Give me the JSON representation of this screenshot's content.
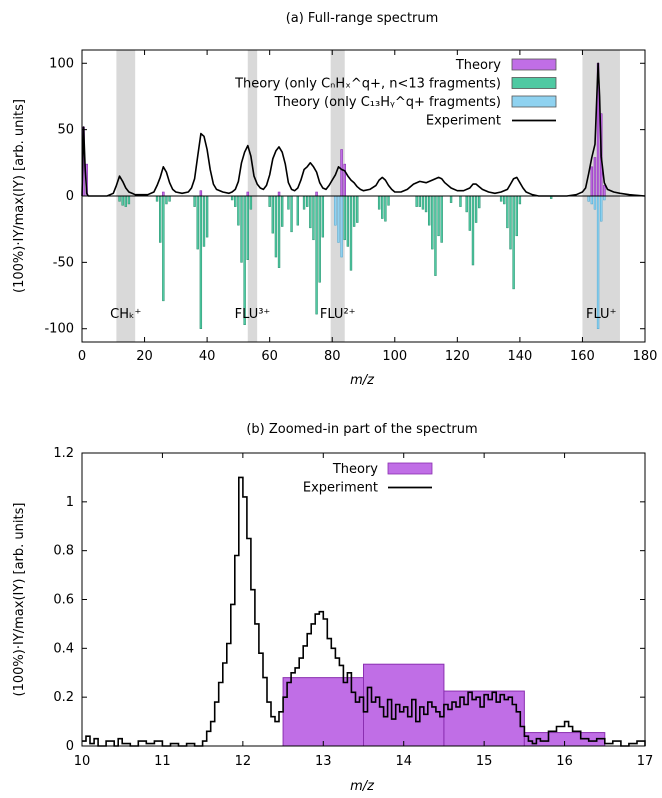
{
  "chart_data": [
    {
      "type": "bar",
      "title": "(a) Full-range spectrum",
      "xlabel": "m/z",
      "ylabel": "(100%)·IY/max(IY) [arb. units]",
      "xlim": [
        0,
        180
      ],
      "ylim": [
        -110,
        110
      ],
      "xticks": [
        "0",
        "20",
        "40",
        "60",
        "80",
        "100",
        "120",
        "140",
        "160",
        "180"
      ],
      "yticks": [
        "-100",
        "-50",
        "0",
        "50",
        "100"
      ],
      "legend_position": "top-right",
      "legend": [
        {
          "key": "theory",
          "label": "Theory",
          "color": "#c06ee6",
          "kind": "box"
        },
        {
          "key": "theory_cn",
          "label": "Theory (only CₙHₓ^q+, n<13 fragments)",
          "color": "#4fc9a2",
          "kind": "box"
        },
        {
          "key": "theory_c13",
          "label": "Theory (only C₁₃Hᵧ^q+ fragments)",
          "color": "#8fd2f0",
          "kind": "box"
        },
        {
          "key": "experiment",
          "label": "Experiment",
          "color": "#000000",
          "kind": "line"
        }
      ],
      "shaded_regions": [
        {
          "x0": 11,
          "x1": 17,
          "label": "CHₖ⁺"
        },
        {
          "x0": 53,
          "x1": 56,
          "label": "FLU³⁺"
        },
        {
          "x0": 79.5,
          "x1": 84,
          "label": "FLU²⁺"
        },
        {
          "x0": 160,
          "x1": 172,
          "label": "FLU⁺"
        }
      ],
      "experiment": [
        [
          0,
          0
        ],
        [
          0.5,
          52
        ],
        [
          1,
          22
        ],
        [
          1.5,
          2
        ],
        [
          2,
          0
        ],
        [
          8,
          0
        ],
        [
          10,
          2
        ],
        [
          11,
          8
        ],
        [
          12,
          15
        ],
        [
          13,
          11
        ],
        [
          14,
          6
        ],
        [
          15,
          3
        ],
        [
          16,
          2
        ],
        [
          17,
          1
        ],
        [
          19,
          1
        ],
        [
          21,
          1
        ],
        [
          23,
          3
        ],
        [
          24,
          8
        ],
        [
          25,
          14
        ],
        [
          26,
          22
        ],
        [
          27,
          18
        ],
        [
          28,
          10
        ],
        [
          29,
          5
        ],
        [
          30,
          3
        ],
        [
          32,
          2
        ],
        [
          34,
          3
        ],
        [
          35,
          6
        ],
        [
          36,
          13
        ],
        [
          37,
          30
        ],
        [
          38,
          47
        ],
        [
          39,
          45
        ],
        [
          40,
          35
        ],
        [
          41,
          20
        ],
        [
          42,
          9
        ],
        [
          43,
          5
        ],
        [
          45,
          3
        ],
        [
          47,
          2
        ],
        [
          48,
          3
        ],
        [
          49,
          5
        ],
        [
          50,
          11
        ],
        [
          51,
          25
        ],
        [
          52,
          33
        ],
        [
          53,
          38
        ],
        [
          54,
          30
        ],
        [
          55,
          15
        ],
        [
          56,
          9
        ],
        [
          57,
          6
        ],
        [
          58,
          5
        ],
        [
          59,
          8
        ],
        [
          60,
          16
        ],
        [
          61,
          28
        ],
        [
          62,
          34
        ],
        [
          63,
          37
        ],
        [
          64,
          33
        ],
        [
          65,
          24
        ],
        [
          66,
          10
        ],
        [
          67,
          5
        ],
        [
          68,
          4
        ],
        [
          69,
          6
        ],
        [
          70,
          12
        ],
        [
          71,
          20
        ],
        [
          72,
          22
        ],
        [
          73,
          25
        ],
        [
          74,
          22
        ],
        [
          75,
          18
        ],
        [
          76,
          10
        ],
        [
          77,
          6
        ],
        [
          78,
          5
        ],
        [
          79,
          8
        ],
        [
          80,
          12
        ],
        [
          81,
          16
        ],
        [
          82,
          22
        ],
        [
          83,
          20
        ],
        [
          84,
          19
        ],
        [
          85,
          15
        ],
        [
          86,
          12
        ],
        [
          87,
          10
        ],
        [
          88,
          7
        ],
        [
          89,
          5
        ],
        [
          90,
          4
        ],
        [
          92,
          5
        ],
        [
          94,
          8
        ],
        [
          95,
          12
        ],
        [
          96,
          14
        ],
        [
          97,
          12
        ],
        [
          98,
          8
        ],
        [
          99,
          5
        ],
        [
          100,
          3
        ],
        [
          102,
          3
        ],
        [
          104,
          5
        ],
        [
          106,
          9
        ],
        [
          108,
          11
        ],
        [
          110,
          10
        ],
        [
          112,
          12
        ],
        [
          114,
          14
        ],
        [
          115,
          13
        ],
        [
          116,
          10
        ],
        [
          118,
          6
        ],
        [
          120,
          4
        ],
        [
          122,
          4
        ],
        [
          124,
          6
        ],
        [
          125,
          9
        ],
        [
          126,
          9
        ],
        [
          127,
          7
        ],
        [
          128,
          5
        ],
        [
          130,
          3
        ],
        [
          132,
          2
        ],
        [
          134,
          3
        ],
        [
          136,
          5
        ],
        [
          137,
          9
        ],
        [
          138,
          13
        ],
        [
          139,
          14
        ],
        [
          140,
          10
        ],
        [
          141,
          6
        ],
        [
          142,
          3
        ],
        [
          144,
          1
        ],
        [
          146,
          0
        ],
        [
          155,
          0
        ],
        [
          158,
          1
        ],
        [
          160,
          3
        ],
        [
          161,
          6
        ],
        [
          162,
          17
        ],
        [
          163,
          29
        ],
        [
          164,
          39
        ],
        [
          165,
          100
        ],
        [
          165.5,
          75
        ],
        [
          166,
          30
        ],
        [
          167,
          10
        ],
        [
          168,
          5
        ],
        [
          170,
          3
        ],
        [
          172,
          2
        ],
        [
          175,
          1
        ],
        [
          180,
          0
        ]
      ],
      "theory_pos": [
        [
          0.5,
          52
        ],
        [
          1.5,
          24
        ],
        [
          26,
          3
        ],
        [
          38,
          4
        ],
        [
          53,
          3
        ],
        [
          63,
          3
        ],
        [
          75,
          3
        ],
        [
          83,
          35
        ],
        [
          84,
          24
        ],
        [
          163,
          22
        ],
        [
          164,
          29
        ],
        [
          165,
          100
        ],
        [
          166,
          62
        ],
        [
          167,
          8
        ]
      ],
      "theory_cn": [
        [
          12,
          -4
        ],
        [
          13,
          -7
        ],
        [
          14,
          -8
        ],
        [
          15,
          -6
        ],
        [
          24,
          -4
        ],
        [
          25,
          -35
        ],
        [
          26,
          -79
        ],
        [
          27,
          -6
        ],
        [
          28,
          -4
        ],
        [
          36,
          -8
        ],
        [
          37,
          -40
        ],
        [
          38,
          -100
        ],
        [
          39,
          -38
        ],
        [
          40,
          -31
        ],
        [
          48,
          -3
        ],
        [
          49,
          -8
        ],
        [
          50,
          -22
        ],
        [
          51,
          -50
        ],
        [
          52,
          -97
        ],
        [
          53,
          -48
        ],
        [
          54,
          -10
        ],
        [
          60,
          -8
        ],
        [
          61,
          -28
        ],
        [
          62,
          -46
        ],
        [
          63,
          -54
        ],
        [
          64,
          -23
        ],
        [
          66,
          -10
        ],
        [
          67,
          -27
        ],
        [
          69,
          -22
        ],
        [
          71,
          -10
        ],
        [
          72,
          -8
        ],
        [
          73,
          -24
        ],
        [
          74,
          -33
        ],
        [
          75,
          -89
        ],
        [
          76,
          -65
        ],
        [
          77,
          -31
        ],
        [
          84,
          -33
        ],
        [
          85,
          -38
        ],
        [
          86,
          -56
        ],
        [
          87,
          -23
        ],
        [
          88,
          -20
        ],
        [
          95,
          -10
        ],
        [
          96,
          -17
        ],
        [
          97,
          -19
        ],
        [
          98,
          -7
        ],
        [
          107,
          -8
        ],
        [
          108,
          -8
        ],
        [
          109,
          -10
        ],
        [
          110,
          -12
        ],
        [
          111,
          -22
        ],
        [
          112,
          -40
        ],
        [
          113,
          -60
        ],
        [
          114,
          -30
        ],
        [
          115,
          -35
        ],
        [
          118,
          -5
        ],
        [
          121,
          -8
        ],
        [
          123,
          -12
        ],
        [
          124,
          -26
        ],
        [
          125,
          -52
        ],
        [
          126,
          -20
        ],
        [
          127,
          -9
        ],
        [
          134,
          -4
        ],
        [
          135,
          -6
        ],
        [
          136,
          -24
        ],
        [
          137,
          -40
        ],
        [
          138,
          -70
        ],
        [
          139,
          -30
        ],
        [
          140,
          -6
        ],
        [
          150,
          -2
        ]
      ],
      "theory_c13": [
        [
          81,
          -22
        ],
        [
          82,
          -35
        ],
        [
          83,
          -46
        ],
        [
          162,
          -4
        ],
        [
          163,
          -6
        ],
        [
          164,
          -10
        ],
        [
          165,
          -100
        ],
        [
          166,
          -19
        ],
        [
          167,
          -3
        ]
      ]
    },
    {
      "type": "bar",
      "title": "(b) Zoomed-in part of the spectrum",
      "xlabel": "m/z",
      "ylabel": "(100%)·IY/max(IY) [arb. units]",
      "xlim": [
        10,
        17
      ],
      "ylim": [
        0,
        1.2
      ],
      "xticks": [
        "10",
        "11",
        "12",
        "13",
        "14",
        "15",
        "16",
        "17"
      ],
      "yticks": [
        "0",
        "0.2",
        "0.4",
        "0.6",
        "0.8",
        "1",
        "1.2"
      ],
      "legend_position": "top-center",
      "legend": [
        {
          "key": "theory",
          "label": "Theory",
          "color": "#c06ee6",
          "kind": "box"
        },
        {
          "key": "experiment",
          "label": "Experiment",
          "color": "#000000",
          "kind": "line"
        }
      ],
      "theory_bars": [
        {
          "x0": 12.5,
          "x1": 13.5,
          "value": 0.28
        },
        {
          "x0": 13.5,
          "x1": 14.5,
          "value": 0.335
        },
        {
          "x0": 14.5,
          "x1": 15.5,
          "value": 0.225
        },
        {
          "x0": 15.5,
          "x1": 16.5,
          "value": 0.055
        }
      ],
      "experiment": [
        [
          10,
          0.02
        ],
        [
          10.05,
          0.04
        ],
        [
          10.1,
          0.01
        ],
        [
          10.15,
          0.03
        ],
        [
          10.2,
          0.0
        ],
        [
          10.3,
          0.02
        ],
        [
          10.4,
          0.0
        ],
        [
          10.45,
          0.03
        ],
        [
          10.5,
          0.01
        ],
        [
          10.6,
          0.0
        ],
        [
          10.7,
          0.02
        ],
        [
          10.8,
          0.01
        ],
        [
          10.9,
          0.02
        ],
        [
          11.0,
          0.0
        ],
        [
          11.1,
          0.01
        ],
        [
          11.2,
          0.0
        ],
        [
          11.3,
          0.01
        ],
        [
          11.4,
          0.0
        ],
        [
          11.5,
          0.02
        ],
        [
          11.55,
          0.06
        ],
        [
          11.6,
          0.1
        ],
        [
          11.65,
          0.18
        ],
        [
          11.7,
          0.26
        ],
        [
          11.75,
          0.34
        ],
        [
          11.8,
          0.42
        ],
        [
          11.85,
          0.58
        ],
        [
          11.9,
          0.78
        ],
        [
          11.95,
          1.1
        ],
        [
          12.0,
          1.02
        ],
        [
          12.05,
          0.85
        ],
        [
          12.1,
          0.64
        ],
        [
          12.15,
          0.5
        ],
        [
          12.2,
          0.38
        ],
        [
          12.25,
          0.28
        ],
        [
          12.3,
          0.18
        ],
        [
          12.35,
          0.12
        ],
        [
          12.4,
          0.1
        ],
        [
          12.45,
          0.14
        ],
        [
          12.5,
          0.2
        ],
        [
          12.55,
          0.26
        ],
        [
          12.6,
          0.3
        ],
        [
          12.65,
          0.32
        ],
        [
          12.7,
          0.36
        ],
        [
          12.75,
          0.41
        ],
        [
          12.8,
          0.46
        ],
        [
          12.85,
          0.5
        ],
        [
          12.9,
          0.54
        ],
        [
          12.95,
          0.55
        ],
        [
          13.0,
          0.52
        ],
        [
          13.05,
          0.44
        ],
        [
          13.1,
          0.4
        ],
        [
          13.15,
          0.36
        ],
        [
          13.2,
          0.33
        ],
        [
          13.25,
          0.26
        ],
        [
          13.3,
          0.3
        ],
        [
          13.35,
          0.22
        ],
        [
          13.4,
          0.18
        ],
        [
          13.45,
          0.2
        ],
        [
          13.5,
          0.14
        ],
        [
          13.55,
          0.24
        ],
        [
          13.6,
          0.18
        ],
        [
          13.65,
          0.2
        ],
        [
          13.7,
          0.16
        ],
        [
          13.75,
          0.12
        ],
        [
          13.8,
          0.19
        ],
        [
          13.85,
          0.11
        ],
        [
          13.9,
          0.17
        ],
        [
          13.95,
          0.14
        ],
        [
          14.0,
          0.16
        ],
        [
          14.05,
          0.12
        ],
        [
          14.1,
          0.19
        ],
        [
          14.15,
          0.1
        ],
        [
          14.2,
          0.16
        ],
        [
          14.25,
          0.13
        ],
        [
          14.3,
          0.18
        ],
        [
          14.35,
          0.16
        ],
        [
          14.4,
          0.14
        ],
        [
          14.45,
          0.12
        ],
        [
          14.5,
          0.17
        ],
        [
          14.55,
          0.15
        ],
        [
          14.6,
          0.18
        ],
        [
          14.65,
          0.16
        ],
        [
          14.7,
          0.2
        ],
        [
          14.75,
          0.17
        ],
        [
          14.8,
          0.22
        ],
        [
          14.85,
          0.19
        ],
        [
          14.9,
          0.2
        ],
        [
          14.95,
          0.16
        ],
        [
          15.0,
          0.21
        ],
        [
          15.05,
          0.19
        ],
        [
          15.1,
          0.22
        ],
        [
          15.15,
          0.18
        ],
        [
          15.2,
          0.21
        ],
        [
          15.25,
          0.19
        ],
        [
          15.3,
          0.2
        ],
        [
          15.35,
          0.17
        ],
        [
          15.4,
          0.14
        ],
        [
          15.45,
          0.08
        ],
        [
          15.5,
          0.04
        ],
        [
          15.55,
          0.02
        ],
        [
          15.6,
          0.01
        ],
        [
          15.65,
          0.03
        ],
        [
          15.7,
          0.02
        ],
        [
          15.8,
          0.06
        ],
        [
          15.9,
          0.08
        ],
        [
          16.0,
          0.1
        ],
        [
          16.05,
          0.08
        ],
        [
          16.1,
          0.06
        ],
        [
          16.2,
          0.03
        ],
        [
          16.3,
          0.02
        ],
        [
          16.4,
          0.03
        ],
        [
          16.5,
          0.01
        ],
        [
          16.6,
          0.02
        ],
        [
          16.7,
          0.0
        ],
        [
          16.8,
          0.01
        ],
        [
          16.9,
          0.02
        ],
        [
          17.0,
          0.0
        ]
      ]
    }
  ]
}
